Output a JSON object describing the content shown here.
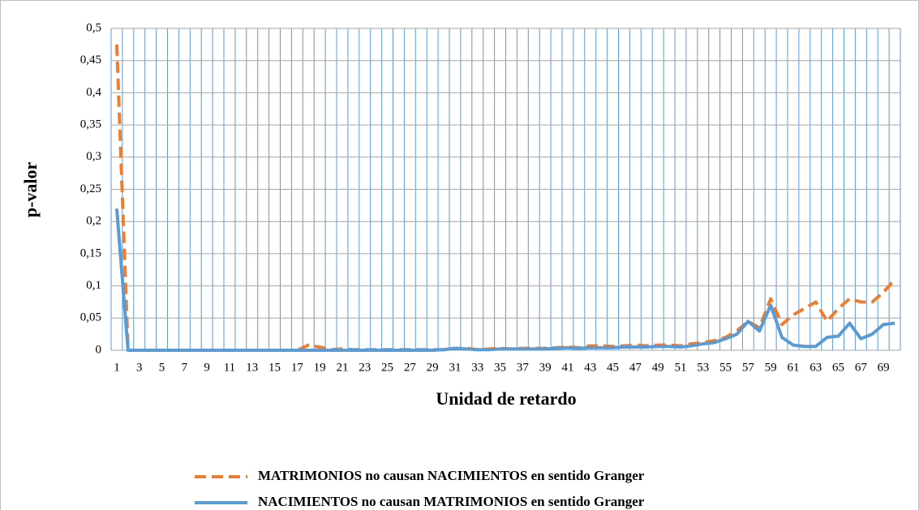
{
  "chart_data": {
    "type": "line",
    "y_label": "p-valor",
    "x_label": "Unidad de retardo",
    "categories": [
      1,
      null,
      3,
      null,
      5,
      null,
      7,
      null,
      9,
      null,
      11,
      null,
      13,
      null,
      15,
      null,
      17,
      null,
      19,
      null,
      21,
      null,
      23,
      null,
      25,
      null,
      27,
      null,
      29,
      null,
      31,
      null,
      33,
      null,
      35,
      null,
      37,
      null,
      39,
      null,
      41,
      null,
      43,
      null,
      45,
      null,
      47,
      null,
      49,
      null,
      51,
      null,
      53,
      null,
      55,
      null,
      57,
      null,
      59,
      null,
      61,
      null,
      63,
      null,
      65,
      null,
      67,
      null,
      69,
      null
    ],
    "series": [
      {
        "name": "MATRIMONIOS no causan  NACIMIENTOS en sentido Granger",
        "color": "#ed7d31",
        "dash": true,
        "values": [
          0.475,
          0,
          0,
          0,
          0,
          0,
          0,
          0,
          0,
          0,
          0,
          0,
          0,
          0,
          0,
          0,
          0,
          0.008,
          0.005,
          0.001,
          0.002,
          0.001,
          0.001,
          0.001,
          0.001,
          0.001,
          0.001,
          0.001,
          0.001,
          0.001,
          0.003,
          0.003,
          0.001,
          0.002,
          0.003,
          0.002,
          0.003,
          0.003,
          0.003,
          0.004,
          0.005,
          0.004,
          0.007,
          0.007,
          0.006,
          0.007,
          0.008,
          0.007,
          0.008,
          0.008,
          0.007,
          0.01,
          0.012,
          0.015,
          0.02,
          0.03,
          0.045,
          0.035,
          0.08,
          0.04,
          0.055,
          0.065,
          0.075,
          0.045,
          0.065,
          0.08,
          0.075,
          0.075,
          0.09,
          0.11
        ]
      },
      {
        "name": "NACIMIENTOS no causan MATRIMONIOS en sentido Granger",
        "color": "#5b9bd5",
        "dash": false,
        "values": [
          0.22,
          0,
          0,
          0,
          0,
          0,
          0,
          0,
          0,
          0,
          0,
          0,
          0,
          0,
          0,
          0,
          0,
          0,
          0,
          0,
          0,
          0,
          0,
          0,
          0,
          0,
          0,
          0,
          0,
          0.001,
          0.003,
          0.002,
          0.001,
          0.001,
          0.002,
          0.002,
          0.002,
          0.002,
          0.002,
          0.003,
          0.004,
          0.003,
          0.004,
          0.004,
          0.004,
          0.005,
          0.005,
          0.005,
          0.006,
          0.006,
          0.005,
          0.007,
          0.01,
          0.012,
          0.018,
          0.025,
          0.045,
          0.03,
          0.07,
          0.02,
          0.008,
          0.006,
          0.006,
          0.02,
          0.022,
          0.042,
          0.018,
          0.025,
          0.04,
          0.042
        ]
      }
    ],
    "ylim": [
      0,
      0.5
    ],
    "yticks": [
      0,
      {
        "value": 0.05,
        "label": "0,05"
      },
      {
        "value": 0.1,
        "label": "0,1"
      },
      {
        "value": 0.15,
        "label": "0,15"
      },
      {
        "value": 0.2,
        "label": "0,2"
      },
      {
        "value": 0.25,
        "label": "0,25"
      },
      {
        "value": 0.3,
        "label": "0,3"
      },
      {
        "value": 0.35,
        "label": "0,35"
      },
      {
        "value": 0.4,
        "label": "0,4"
      },
      {
        "value": 0.45,
        "label": "0,45"
      },
      {
        "value": 0.5,
        "label": "0,5"
      }
    ],
    "grid": true,
    "legend": "bottom"
  }
}
